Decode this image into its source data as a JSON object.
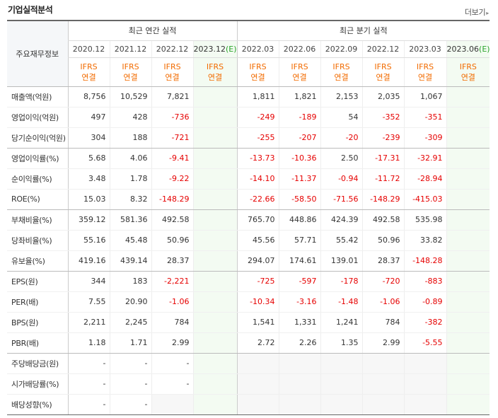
{
  "header": {
    "title": "기업실적분석",
    "more_label": "더보기",
    "more_arrow": "▸"
  },
  "table": {
    "corner_label": "주요재무정보",
    "annual_group": "최근 연간 실적",
    "quarter_group": "최근 분기 실적",
    "estimate_color": "#f3fbf2",
    "negative_color": "#e60000",
    "ifrs_color": "#f26b00",
    "periods": [
      {
        "label": "2020.12",
        "est": false
      },
      {
        "label": "2021.12",
        "est": false
      },
      {
        "label": "2022.12",
        "est": false
      },
      {
        "label": "2023.12",
        "est": true,
        "est_mark": "(E)"
      },
      {
        "label": "2022.03",
        "est": false
      },
      {
        "label": "2022.06",
        "est": false
      },
      {
        "label": "2022.09",
        "est": false
      },
      {
        "label": "2022.12",
        "est": false
      },
      {
        "label": "2023.03",
        "est": false
      },
      {
        "label": "2023.06",
        "est": true,
        "est_mark": "(E)"
      }
    ],
    "ifrs": {
      "line1": "IFRS",
      "line2": "연결"
    },
    "rows": [
      {
        "label": "매출액(억원)",
        "values": [
          "8,756",
          "10,529",
          "7,821",
          "",
          "1,811",
          "1,821",
          "2,153",
          "2,035",
          "1,067",
          ""
        ]
      },
      {
        "label": "영업이익(억원)",
        "values": [
          "497",
          "428",
          "-736",
          "",
          "-249",
          "-189",
          "54",
          "-352",
          "-351",
          ""
        ]
      },
      {
        "label": "당기순이익(억원)",
        "values": [
          "304",
          "188",
          "-721",
          "",
          "-255",
          "-207",
          "-20",
          "-239",
          "-309",
          ""
        ]
      },
      {
        "label": "영업이익률(%)",
        "values": [
          "5.68",
          "4.06",
          "-9.41",
          "",
          "-13.73",
          "-10.36",
          "2.50",
          "-17.31",
          "-32.91",
          ""
        ]
      },
      {
        "label": "순이익률(%)",
        "values": [
          "3.48",
          "1.78",
          "-9.22",
          "",
          "-14.10",
          "-11.37",
          "-0.94",
          "-11.72",
          "-28.94",
          ""
        ]
      },
      {
        "label": "ROE(%)",
        "values": [
          "15.03",
          "8.32",
          "-148.29",
          "",
          "-22.66",
          "-58.50",
          "-71.56",
          "-148.29",
          "-415.03",
          ""
        ]
      },
      {
        "label": "부채비율(%)",
        "values": [
          "359.12",
          "581.36",
          "492.58",
          "",
          "765.70",
          "448.86",
          "424.39",
          "492.58",
          "535.98",
          ""
        ]
      },
      {
        "label": "당좌비율(%)",
        "values": [
          "55.16",
          "45.48",
          "50.96",
          "",
          "45.56",
          "57.71",
          "55.42",
          "50.96",
          "33.82",
          ""
        ]
      },
      {
        "label": "유보율(%)",
        "values": [
          "419.16",
          "439.14",
          "28.37",
          "",
          "294.07",
          "174.61",
          "139.01",
          "28.37",
          "-148.28",
          ""
        ]
      },
      {
        "label": "EPS(원)",
        "values": [
          "344",
          "183",
          "-2,221",
          "",
          "-725",
          "-597",
          "-178",
          "-720",
          "-883",
          ""
        ]
      },
      {
        "label": "PER(배)",
        "values": [
          "7.55",
          "20.90",
          "-1.06",
          "",
          "-10.34",
          "-3.16",
          "-1.48",
          "-1.06",
          "-0.89",
          ""
        ]
      },
      {
        "label": "BPS(원)",
        "values": [
          "2,211",
          "2,245",
          "784",
          "",
          "1,541",
          "1,331",
          "1,241",
          "784",
          "-382",
          ""
        ]
      },
      {
        "label": "PBR(배)",
        "values": [
          "1.18",
          "1.71",
          "2.99",
          "",
          "2.72",
          "2.26",
          "1.35",
          "2.99",
          "-5.55",
          ""
        ]
      },
      {
        "label": "주당배당금(원)",
        "values": [
          "-",
          "-",
          "-",
          "",
          "",
          "",
          "",
          "",
          "",
          ""
        ]
      },
      {
        "label": "시가배당률(%)",
        "values": [
          "-",
          "-",
          "-",
          "",
          "",
          "",
          "",
          "",
          "",
          ""
        ]
      },
      {
        "label": "배당성향(%)",
        "values": [
          "-",
          "-",
          "",
          "",
          "",
          "",
          "",
          "",
          "",
          ""
        ]
      }
    ]
  }
}
